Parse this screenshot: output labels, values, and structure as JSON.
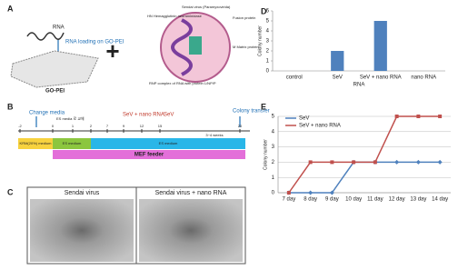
{
  "panel_a": {
    "label": "A",
    "rna": "RNA",
    "loading": "RNA loading on GO-PEI",
    "go_pei": "GO-PEI",
    "plus": "+",
    "virus_labels": [
      "Sendai virus (Paramyxovirida)",
      "HN Hemagglutinin neuraminidase",
      "Fusion protein",
      "M Matrix protein",
      "RNP complex of RNA with protein L/NP/P"
    ]
  },
  "panel_b": {
    "label": "B",
    "change_media": "Change media",
    "es_note": "ES media 로 교체",
    "treatment": "SeV + nano RNA",
    "sev": "SeV",
    "colony_transfer": "Colony transfer",
    "timeline": [
      "-2",
      "0",
      "1",
      "2",
      "7",
      "9",
      "12",
      "15",
      "20"
    ],
    "duration": "3~4 weeks",
    "media": [
      "KRM(20%) medium",
      "ES medium",
      "ES medium"
    ],
    "feeder": "MEF feeder"
  },
  "panel_c": {
    "label": "C",
    "titles": [
      "Sendai virus",
      "Sendai virus + nano RNA"
    ]
  },
  "chart_data": [
    {
      "type": "bar",
      "label": "D",
      "categories": [
        "control",
        "SeV",
        "SeV + nano RNA",
        "nano RNA"
      ],
      "values": [
        0,
        2,
        5,
        0
      ],
      "color": "#4f81bd",
      "ylim": [
        0,
        6
      ],
      "yticks": [
        0,
        1,
        2,
        3,
        4,
        5,
        6
      ],
      "xlabel": "RNA",
      "ylabel": "Colony number",
      "grid": false
    },
    {
      "type": "line",
      "label": "E",
      "categories": [
        "7 day",
        "8 day",
        "9 day",
        "10 day",
        "11 day",
        "12 day",
        "13 day",
        "14 day"
      ],
      "series": [
        {
          "name": "SeV",
          "color": "#4f81bd",
          "values": [
            0,
            0,
            0,
            2,
            2,
            2,
            2,
            2
          ]
        },
        {
          "name": "SeV + nano RNA",
          "color": "#c0504d",
          "values": [
            0,
            2,
            2,
            2,
            2,
            5,
            5,
            5
          ]
        }
      ],
      "ylim": [
        0,
        5
      ],
      "yticks": [
        0,
        1,
        2,
        3,
        4,
        5
      ],
      "ylabel": "Colony number",
      "grid": true,
      "legend": "top-left"
    }
  ]
}
